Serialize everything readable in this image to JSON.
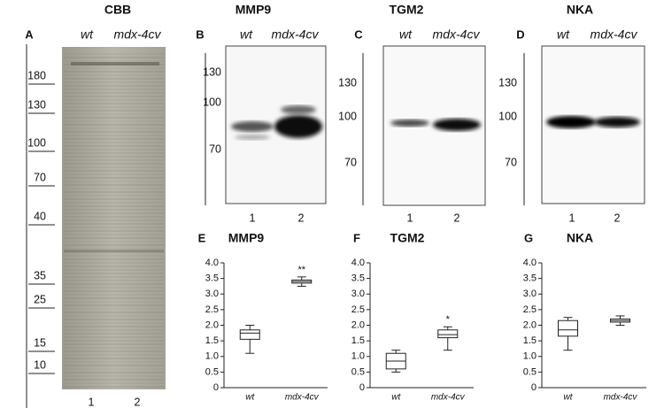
{
  "blots": [
    {
      "label": "A",
      "title": "CBB",
      "lanes": [
        "wt",
        "mdx-4cv"
      ],
      "markers": [
        180,
        130,
        100,
        70,
        40,
        35,
        25,
        15,
        10
      ],
      "lane_numbers": [
        1,
        2
      ]
    },
    {
      "label": "B",
      "title": "MMP9",
      "lanes": [
        "wt",
        "mdx-4cv"
      ],
      "markers": [
        130,
        100,
        70
      ],
      "lane_numbers": [
        1,
        2
      ]
    },
    {
      "label": "C",
      "title": "TGM2",
      "lanes": [
        "wt",
        "mdx-4cv"
      ],
      "markers": [
        130,
        100,
        70
      ],
      "lane_numbers": [
        1,
        2
      ]
    },
    {
      "label": "D",
      "title": "NKA",
      "lanes": [
        "wt",
        "mdx-4cv"
      ],
      "markers": [
        130,
        100,
        70
      ],
      "lane_numbers": [
        1,
        2
      ]
    }
  ],
  "chart_data": [
    {
      "type": "box",
      "panel_label": "E",
      "title": "MMP9",
      "categories": [
        "wt",
        "mdx-4cv"
      ],
      "boxes": [
        {
          "min": 1.1,
          "q1": 1.55,
          "median": 1.75,
          "q3": 1.85,
          "max": 2.0
        },
        {
          "min": 3.25,
          "q1": 3.35,
          "median": 3.4,
          "q3": 3.45,
          "max": 3.55
        }
      ],
      "annotations": [
        null,
        "**"
      ],
      "ylim": [
        0,
        4
      ],
      "yticks": [
        0,
        0.5,
        {
          "value": 1,
          "label": "1.0"
        },
        1.5,
        {
          "value": 2,
          "label": "2.0"
        },
        2.5,
        {
          "value": 3,
          "label": "3.0"
        },
        3.5,
        {
          "value": 4,
          "label": "4.0"
        }
      ]
    },
    {
      "type": "box",
      "panel_label": "F",
      "title": "TGM2",
      "categories": [
        "wt",
        "mdx-4cv"
      ],
      "boxes": [
        {
          "min": 0.5,
          "q1": 0.6,
          "median": 0.85,
          "q3": 1.1,
          "max": 1.2
        },
        {
          "min": 1.2,
          "q1": 1.6,
          "median": 1.7,
          "q3": 1.85,
          "max": 1.95
        }
      ],
      "annotations": [
        null,
        "*"
      ],
      "ylim": [
        0,
        4
      ],
      "yticks": [
        0,
        0.5,
        {
          "value": 1,
          "label": "1.0"
        },
        1.5,
        {
          "value": 2,
          "label": "2.0"
        },
        2.5,
        {
          "value": 3,
          "label": "3.0"
        },
        3.5,
        {
          "value": 4,
          "label": "4.0"
        }
      ]
    },
    {
      "type": "box",
      "panel_label": "G",
      "title": "NKA",
      "categories": [
        "wt",
        "mdx-4cv"
      ],
      "boxes": [
        {
          "min": 1.2,
          "q1": 1.65,
          "median": 1.85,
          "q3": 2.15,
          "max": 2.25
        },
        {
          "min": 2.0,
          "q1": 2.1,
          "median": 2.15,
          "q3": 2.2,
          "max": 2.3
        }
      ],
      "annotations": [
        null,
        null
      ],
      "ylim": [
        0,
        4
      ],
      "yticks": [
        0,
        0.5,
        {
          "value": 1,
          "label": "1.0"
        },
        1.5,
        {
          "value": 2,
          "label": "2.0"
        },
        2.5,
        {
          "value": 3,
          "label": "3.0"
        },
        3.5,
        {
          "value": 4,
          "label": "4.0"
        }
      ]
    }
  ]
}
